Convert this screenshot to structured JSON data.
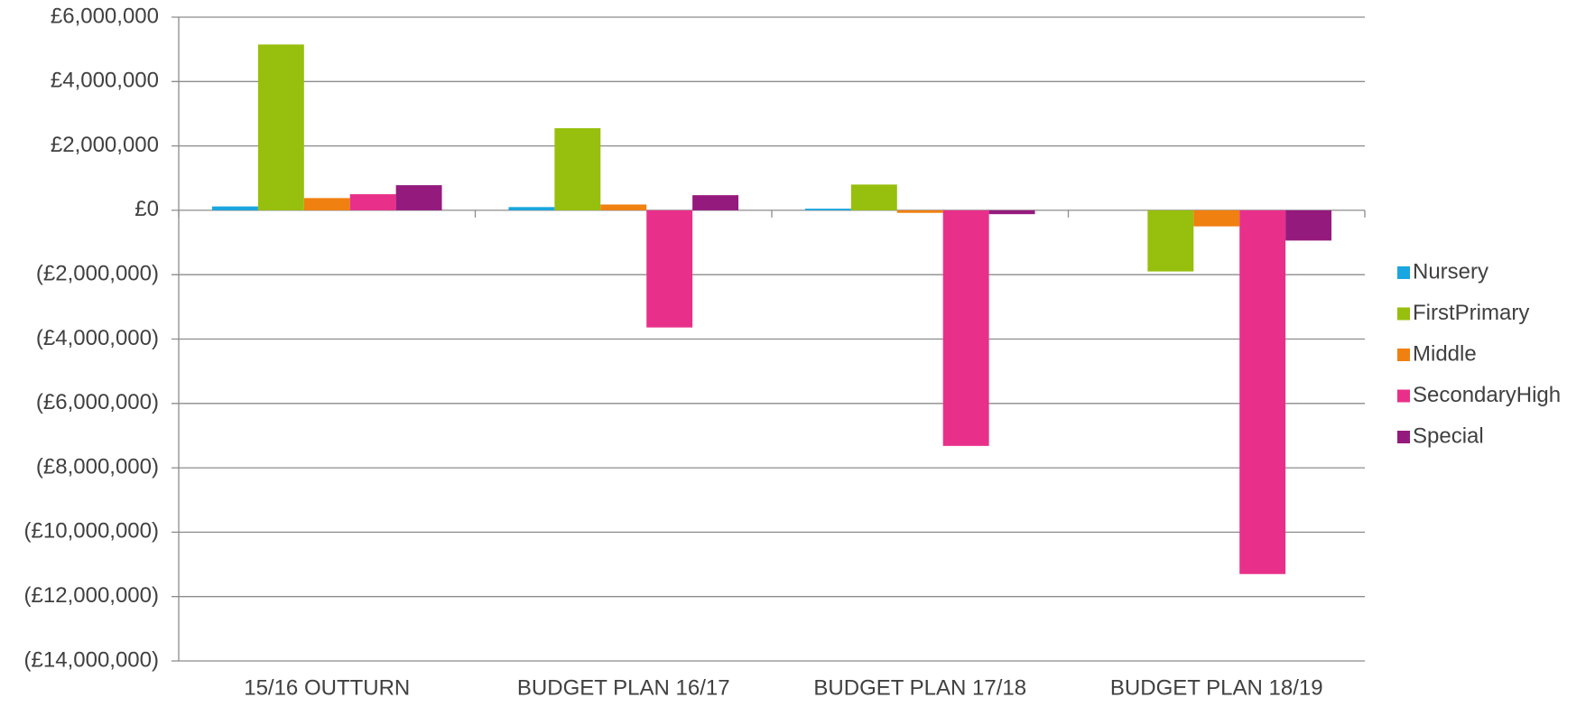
{
  "chart_data": {
    "type": "bar",
    "categories": [
      "15/16 OUTTURN",
      "BUDGET PLAN 16/17",
      "BUDGET PLAN 17/18",
      "BUDGET PLAN 18/19"
    ],
    "series": [
      {
        "name": "Nursery",
        "color": "#1aa6e0",
        "values": [
          120000,
          100000,
          50000,
          0
        ]
      },
      {
        "name": "FirstPrimary",
        "color": "#97bf0d",
        "values": [
          5150000,
          2550000,
          800000,
          -1900000
        ]
      },
      {
        "name": "Middle",
        "color": "#f08010",
        "values": [
          380000,
          180000,
          -80000,
          -500000
        ]
      },
      {
        "name": "SecondaryHigh",
        "color": "#e8308a",
        "values": [
          500000,
          -3640000,
          -7320000,
          -11300000
        ]
      },
      {
        "name": "Special",
        "color": "#951a7e",
        "values": [
          780000,
          470000,
          -120000,
          -940000
        ]
      }
    ],
    "ylim": [
      -14000000,
      6000000
    ],
    "yticks": [
      {
        "value": 6000000,
        "label": "£6,000,000"
      },
      {
        "value": 4000000,
        "label": "£4,000,000"
      },
      {
        "value": 2000000,
        "label": "£2,000,000"
      },
      {
        "value": 0,
        "label": "£0"
      },
      {
        "value": -2000000,
        "label": "(£2,000,000)"
      },
      {
        "value": -4000000,
        "label": "(£4,000,000)"
      },
      {
        "value": -6000000,
        "label": "(£6,000,000)"
      },
      {
        "value": -8000000,
        "label": "(£8,000,000)"
      },
      {
        "value": -10000000,
        "label": "(£10,000,000)"
      },
      {
        "value": -12000000,
        "label": "(£12,000,000)"
      },
      {
        "value": -14000000,
        "label": "(£14,000,000)"
      }
    ],
    "grid": true,
    "legend": "right"
  }
}
